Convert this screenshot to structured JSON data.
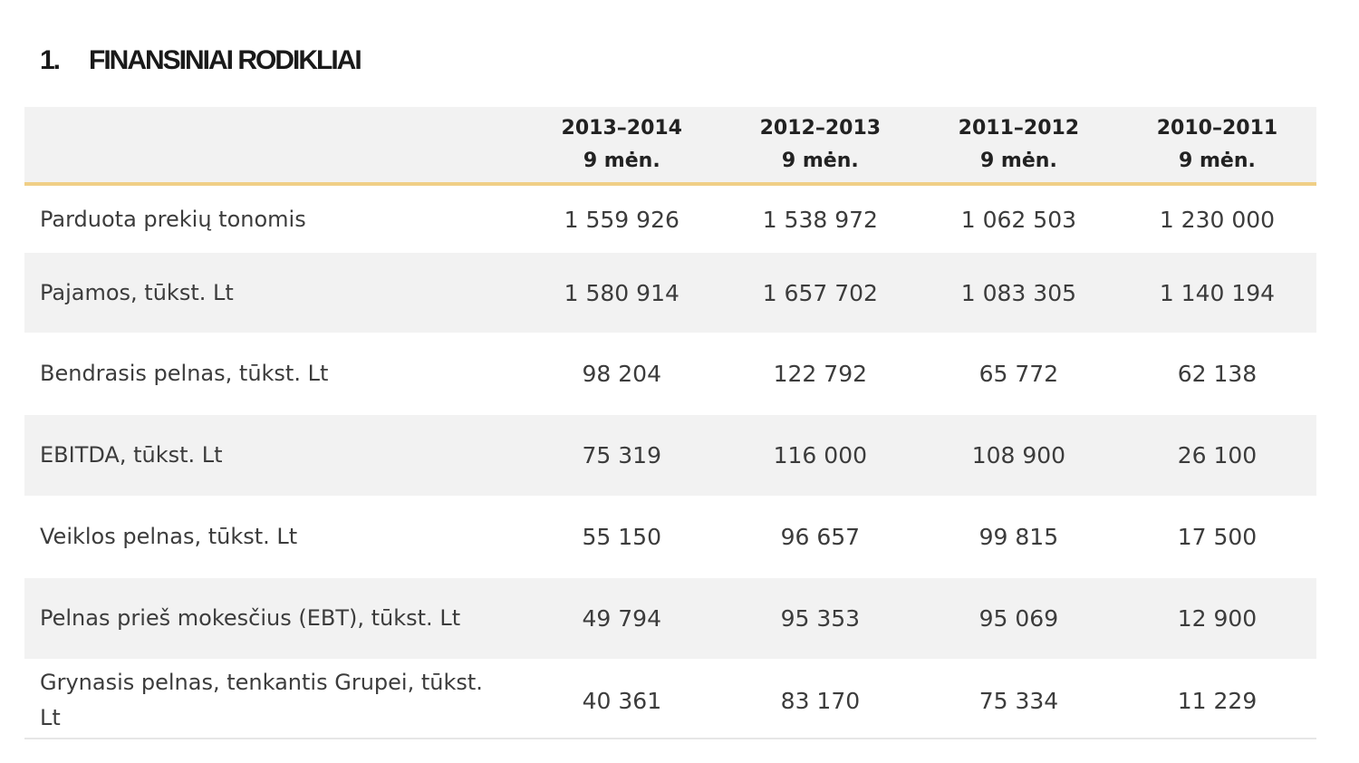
{
  "heading": {
    "number": "1.",
    "title": "FINANSINIAI RODIKLIAI"
  },
  "columns": [
    {
      "years": "2013–2014",
      "period": "9 mėn."
    },
    {
      "years": "2012–2013",
      "period": "9 mėn."
    },
    {
      "years": "2011–2012",
      "period": "9 mėn."
    },
    {
      "years": "2010–2011",
      "period": "9 mėn."
    }
  ],
  "rows": [
    {
      "label": "Parduota prekių tonomis",
      "values": [
        "1 559 926",
        "1 538 972",
        "1 062 503",
        "1 230 000"
      ]
    },
    {
      "label": "Pajamos, tūkst. Lt",
      "values": [
        "1 580 914",
        "1 657 702",
        "1 083 305",
        "1 140 194"
      ]
    },
    {
      "label": "Bendrasis pelnas, tūkst. Lt",
      "values": [
        "98 204",
        "122 792",
        "65 772",
        "62 138"
      ]
    },
    {
      "label": "EBITDA, tūkst. Lt",
      "values": [
        "75 319",
        "116 000",
        "108 900",
        "26 100"
      ]
    },
    {
      "label": "Veiklos pelnas, tūkst. Lt",
      "values": [
        "55 150",
        "96 657",
        "99 815",
        "17 500"
      ]
    },
    {
      "label": "Pelnas prieš mokesčius (EBT), tūkst. Lt",
      "values": [
        "49 794",
        "95 353",
        "95 069",
        "12 900"
      ]
    },
    {
      "label": "Grynasis pelnas, tenkantis Grupei, tūkst. Lt",
      "values": [
        "40 361",
        "83 170",
        "75 334",
        "11 229"
      ]
    }
  ]
}
